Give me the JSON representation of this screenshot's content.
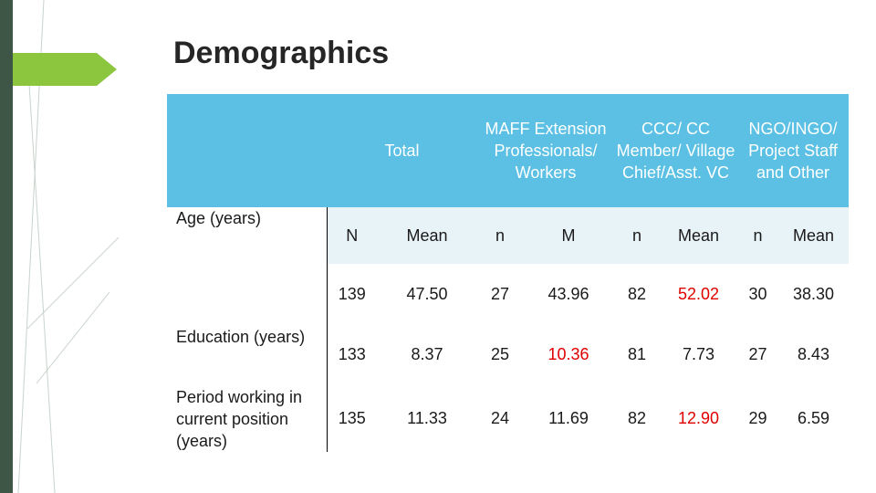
{
  "slide": {
    "title": "Demographics",
    "colors": {
      "sidebar": "#3e5646",
      "arrow": "#8cc63e",
      "header": "#5bc0e3",
      "subheader": "#e8f3f8",
      "highlight": "#e00000"
    }
  },
  "table": {
    "groups": [
      {
        "label": "Total"
      },
      {
        "label": "MAFF Extension Professionals/ Workers"
      },
      {
        "label": "CCC/ CC Member/ Village Chief/Asst. VC"
      },
      {
        "label": "NGO/INGO/ Project Staff and Other"
      }
    ],
    "subheaders": [
      "N",
      "Mean",
      "n",
      "M",
      "n",
      "Mean",
      "n",
      "Mean"
    ],
    "rows": [
      {
        "label": "Age (years)",
        "cells": [
          {
            "value": "139",
            "highlight": false
          },
          {
            "value": "47.50",
            "highlight": false
          },
          {
            "value": "27",
            "highlight": false
          },
          {
            "value": "43.96",
            "highlight": false
          },
          {
            "value": "82",
            "highlight": false
          },
          {
            "value": "52.02",
            "highlight": true
          },
          {
            "value": "30",
            "highlight": false
          },
          {
            "value": "38.30",
            "highlight": false
          }
        ]
      },
      {
        "label": "Education (years)",
        "cells": [
          {
            "value": "133",
            "highlight": false
          },
          {
            "value": "8.37",
            "highlight": false
          },
          {
            "value": "25",
            "highlight": false
          },
          {
            "value": "10.36",
            "highlight": true
          },
          {
            "value": "81",
            "highlight": false
          },
          {
            "value": "7.73",
            "highlight": false
          },
          {
            "value": "27",
            "highlight": false
          },
          {
            "value": "8.43",
            "highlight": false
          }
        ]
      },
      {
        "label": "Period working in current position (years)",
        "cells": [
          {
            "value": "135",
            "highlight": false
          },
          {
            "value": "11.33",
            "highlight": false
          },
          {
            "value": "24",
            "highlight": false
          },
          {
            "value": "11.69",
            "highlight": false
          },
          {
            "value": "82",
            "highlight": false
          },
          {
            "value": "12.90",
            "highlight": true
          },
          {
            "value": "29",
            "highlight": false
          },
          {
            "value": "6.59",
            "highlight": false
          }
        ]
      }
    ]
  }
}
